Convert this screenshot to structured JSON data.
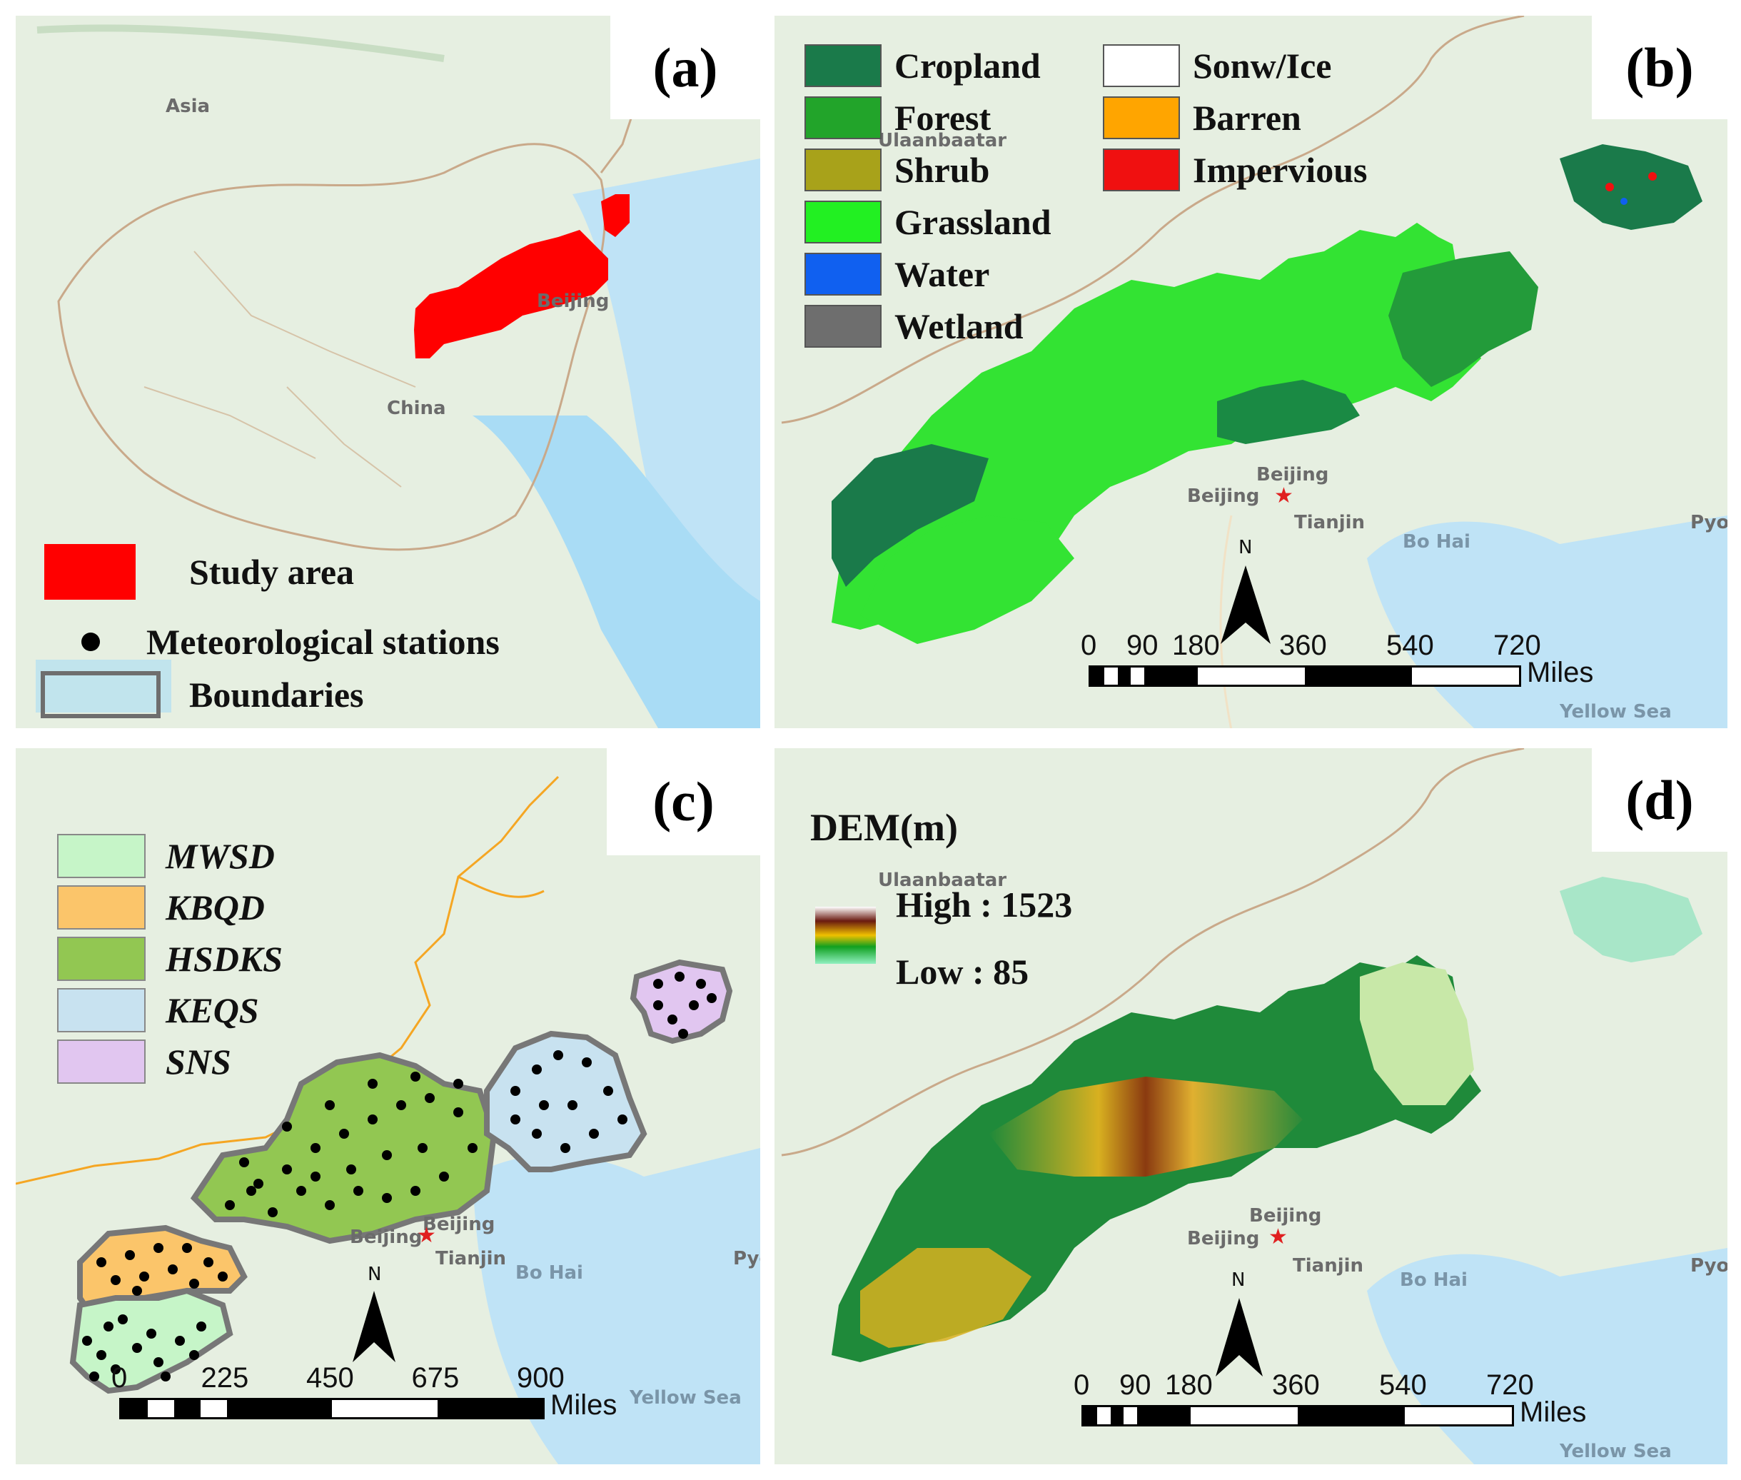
{
  "panels": {
    "a": {
      "label": "(a)",
      "places": {
        "asia": "Asia",
        "china": "China",
        "beijing": "Beijing"
      },
      "legend": {
        "study_area": "Study area",
        "stations": "Meteorological stations",
        "boundaries": "Boundaries"
      },
      "colors": {
        "study_area": "#ff0000",
        "boundary": "#6e6e6e"
      }
    },
    "b": {
      "label": "(b)",
      "legend": [
        {
          "name": "Cropland",
          "color": "#1a7a4a"
        },
        {
          "name": "Forest",
          "color": "#22a42a"
        },
        {
          "name": "Shrub",
          "color": "#a8a21a"
        },
        {
          "name": "Grassland",
          "color": "#22f022"
        },
        {
          "name": "Water",
          "color": "#1060f0"
        },
        {
          "name": "Wetland",
          "color": "#6e6e6e"
        },
        {
          "name": "Sonw/Ice",
          "color": "#ffffff"
        },
        {
          "name": "Barren",
          "color": "#ffa500"
        },
        {
          "name": "Impervious",
          "color": "#f01010"
        }
      ],
      "places": {
        "ulaanbaatar": "Ulaanbaatar",
        "beijing1": "Beijing",
        "beijing2": "Beijing",
        "tianjin": "Tianjin",
        "bohai": "Bo Hai",
        "yellowsea": "Yellow Sea",
        "pyon": "Pyon"
      },
      "north": "N",
      "scale": {
        "ticks": [
          "0",
          "90",
          "180",
          "360",
          "540",
          "720"
        ],
        "unit": "Miles"
      }
    },
    "c": {
      "label": "(c)",
      "legend": [
        {
          "name": "MWSD",
          "color": "#c6f5c8"
        },
        {
          "name": "KBQD",
          "color": "#fbc56a"
        },
        {
          "name": "HSDKS",
          "color": "#92c752"
        },
        {
          "name": "KEQS",
          "color": "#c8e2f0"
        },
        {
          "name": "SNS",
          "color": "#e1c6f0"
        }
      ],
      "places": {
        "beijing1": "Beijing",
        "beijing2": "Beijing",
        "tianjin": "Tianjin",
        "bohai": "Bo Hai",
        "yellowsea": "Yellow Sea",
        "pyon": "Pyo"
      },
      "north": "N",
      "scale": {
        "ticks": [
          "0",
          "225",
          "450",
          "675",
          "900"
        ],
        "unit": "Miles"
      }
    },
    "d": {
      "label": "(d)",
      "legend_title": "DEM(m)",
      "high": "High : 1523",
      "low": "Low :   85",
      "places": {
        "ulaanbaatar": "Ulaanbaatar",
        "beijing1": "Beijing",
        "beijing2": "Beijing",
        "tianjin": "Tianjin",
        "bohai": "Bo Hai",
        "yellowsea": "Yellow Sea",
        "pyon": "Pyon"
      },
      "north": "N",
      "scale": {
        "ticks": [
          "0",
          "90",
          "180",
          "360",
          "540",
          "720"
        ],
        "unit": "Miles"
      }
    }
  }
}
